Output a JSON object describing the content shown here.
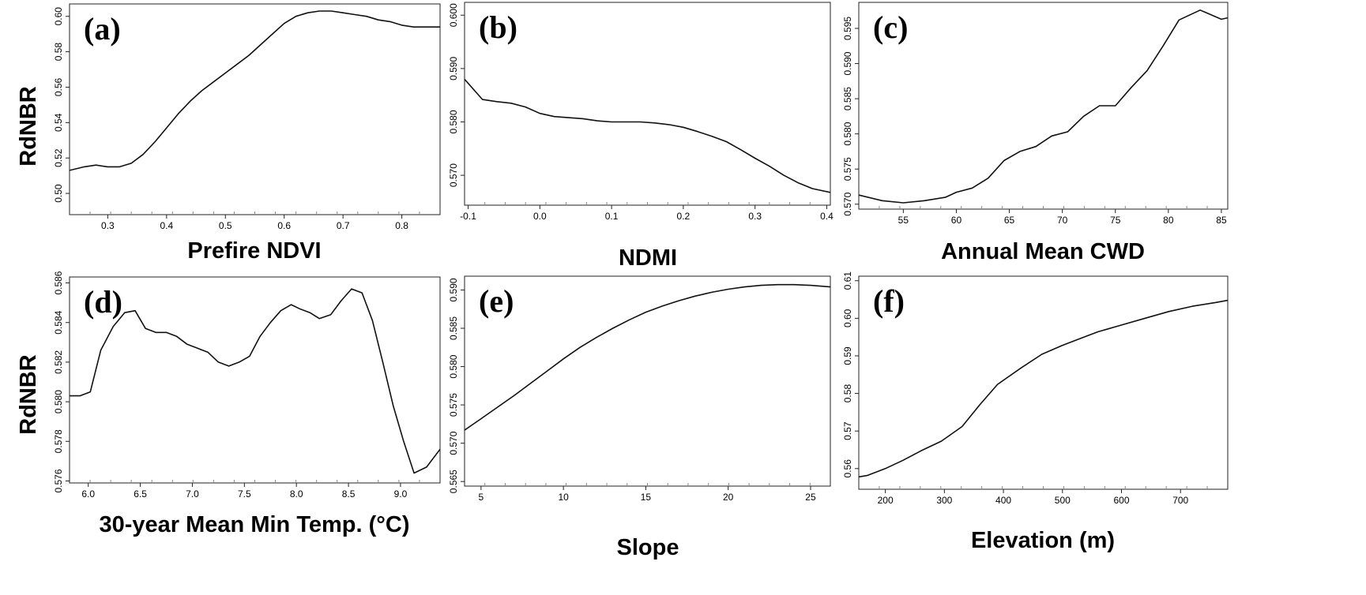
{
  "figure": {
    "shared_ylabel": "RdNBR"
  },
  "chart_data": [
    {
      "type": "line",
      "panel_label": "(a)",
      "title": "",
      "xlabel": "Prefire NDVI",
      "ylabel": "RdNBR",
      "xlim": [
        0.235,
        0.865
      ],
      "ylim": [
        0.488,
        0.607
      ],
      "xticks": [
        0.3,
        0.4,
        0.5,
        0.6,
        0.7,
        0.8
      ],
      "xtick_labels": [
        "0.3",
        "0.4",
        "0.5",
        "0.6",
        "0.7",
        "0.8"
      ],
      "yticks": [
        0.5,
        0.52,
        0.54,
        0.56,
        0.58,
        0.6
      ],
      "ytick_labels": [
        "0.50",
        "0.52",
        "0.54",
        "0.56",
        "0.58",
        "0.60"
      ],
      "x": [
        0.235,
        0.26,
        0.28,
        0.3,
        0.32,
        0.34,
        0.36,
        0.38,
        0.4,
        0.42,
        0.44,
        0.46,
        0.48,
        0.5,
        0.52,
        0.54,
        0.56,
        0.58,
        0.6,
        0.62,
        0.64,
        0.66,
        0.68,
        0.7,
        0.72,
        0.74,
        0.76,
        0.78,
        0.8,
        0.82,
        0.84,
        0.865
      ],
      "y": [
        0.513,
        0.515,
        0.516,
        0.515,
        0.515,
        0.517,
        0.522,
        0.529,
        0.537,
        0.545,
        0.552,
        0.558,
        0.563,
        0.568,
        0.573,
        0.578,
        0.584,
        0.59,
        0.596,
        0.6,
        0.602,
        0.603,
        0.603,
        0.602,
        0.601,
        0.6,
        0.598,
        0.597,
        0.595,
        0.594,
        0.594,
        0.594
      ]
    },
    {
      "type": "line",
      "panel_label": "(b)",
      "title": "",
      "xlabel": "NDMI",
      "ylabel": "RdNBR",
      "xlim": [
        -0.105,
        0.405
      ],
      "ylim": [
        0.5644,
        0.6024
      ],
      "xticks": [
        -0.1,
        0.0,
        0.1,
        0.2,
        0.3,
        0.4
      ],
      "xtick_labels": [
        "-0.1",
        "0.0",
        "0.1",
        "0.2",
        "0.3",
        "0.4"
      ],
      "yticks": [
        0.57,
        0.58,
        0.59,
        0.6
      ],
      "ytick_labels": [
        "0.570",
        "0.580",
        "0.590",
        "0.600"
      ],
      "x": [
        -0.105,
        -0.08,
        -0.06,
        -0.04,
        -0.02,
        0.0,
        0.02,
        0.04,
        0.06,
        0.08,
        0.1,
        0.12,
        0.14,
        0.16,
        0.18,
        0.2,
        0.22,
        0.24,
        0.26,
        0.28,
        0.3,
        0.32,
        0.34,
        0.36,
        0.38,
        0.405
      ],
      "y": [
        0.588,
        0.5842,
        0.5838,
        0.5835,
        0.5828,
        0.5816,
        0.581,
        0.5808,
        0.5806,
        0.5802,
        0.58,
        0.58,
        0.58,
        0.5798,
        0.5795,
        0.579,
        0.5782,
        0.5773,
        0.5763,
        0.5748,
        0.5732,
        0.5717,
        0.57,
        0.5686,
        0.5675,
        0.5668
      ]
    },
    {
      "type": "line",
      "panel_label": "(c)",
      "title": "",
      "xlabel": "Annual Mean CWD",
      "ylabel": "RdNBR",
      "xlim": [
        50.8,
        85.6
      ],
      "ylim": [
        0.5693,
        0.5987
      ],
      "xticks": [
        55,
        60,
        65,
        70,
        75,
        80,
        85
      ],
      "xtick_labels": [
        "55",
        "60",
        "65",
        "70",
        "75",
        "80",
        "85"
      ],
      "yticks": [
        0.57,
        0.575,
        0.58,
        0.585,
        0.59,
        0.595
      ],
      "ytick_labels": [
        "0.570",
        "0.575",
        "0.580",
        "0.585",
        "0.590",
        "0.595"
      ],
      "x": [
        50.8,
        53,
        55,
        57,
        59,
        60,
        61.5,
        63,
        64.5,
        66,
        67.5,
        69,
        70.5,
        72,
        73.5,
        75,
        76.5,
        78,
        79.5,
        81,
        83,
        85,
        85.6
      ],
      "y": [
        0.5713,
        0.5705,
        0.5702,
        0.5705,
        0.571,
        0.5717,
        0.5723,
        0.5737,
        0.5762,
        0.5775,
        0.5782,
        0.5797,
        0.5803,
        0.5825,
        0.584,
        0.584,
        0.5866,
        0.589,
        0.5925,
        0.5962,
        0.5976,
        0.5963,
        0.5965
      ]
    },
    {
      "type": "line",
      "panel_label": "(d)",
      "title": "",
      "xlabel": "30-year Mean Min Temp. (°C)",
      "ylabel": "RdNBR",
      "xlim": [
        5.82,
        9.38
      ],
      "ylim": [
        0.5759,
        0.5863
      ],
      "xticks": [
        6.0,
        6.5,
        7.0,
        7.5,
        8.0,
        8.5,
        9.0
      ],
      "xtick_labels": [
        "6.0",
        "6.5",
        "7.0",
        "7.5",
        "8.0",
        "8.5",
        "9.0"
      ],
      "yticks": [
        0.576,
        0.578,
        0.58,
        0.582,
        0.584,
        0.586
      ],
      "ytick_labels": [
        "0.576",
        "0.578",
        "0.580",
        "0.582",
        "0.584",
        "0.586"
      ],
      "x": [
        5.82,
        5.92,
        6.02,
        6.12,
        6.24,
        6.35,
        6.45,
        6.55,
        6.65,
        6.75,
        6.85,
        6.95,
        7.05,
        7.15,
        7.25,
        7.35,
        7.45,
        7.55,
        7.65,
        7.75,
        7.85,
        7.95,
        8.03,
        8.13,
        8.22,
        8.33,
        8.43,
        8.53,
        8.63,
        8.73,
        8.83,
        8.93,
        9.03,
        9.13,
        9.25,
        9.38
      ],
      "y": [
        0.5803,
        0.5803,
        0.5805,
        0.5826,
        0.5838,
        0.5845,
        0.5846,
        0.5837,
        0.5835,
        0.5835,
        0.5833,
        0.5829,
        0.5827,
        0.5825,
        0.582,
        0.5818,
        0.582,
        0.5823,
        0.5833,
        0.584,
        0.5846,
        0.5849,
        0.5847,
        0.5845,
        0.5842,
        0.5844,
        0.5851,
        0.5857,
        0.5855,
        0.5841,
        0.582,
        0.5798,
        0.578,
        0.5764,
        0.5767,
        0.5776
      ]
    },
    {
      "type": "line",
      "panel_label": "(e)",
      "title": "",
      "xlabel": "Slope",
      "ylabel": "RdNBR",
      "xlim": [
        4.0,
        26.2
      ],
      "ylim": [
        0.5644,
        0.5918
      ],
      "xticks": [
        5,
        10,
        15,
        20,
        25
      ],
      "xtick_labels": [
        "5",
        "10",
        "15",
        "20",
        "25"
      ],
      "yticks": [
        0.565,
        0.57,
        0.575,
        0.58,
        0.585,
        0.59
      ],
      "ytick_labels": [
        "0.565",
        "0.570",
        "0.575",
        "0.580",
        "0.585",
        "0.590"
      ],
      "x": [
        4.0,
        5,
        6,
        7,
        8,
        9,
        10,
        11,
        12,
        13,
        14,
        15,
        16,
        17,
        18,
        19,
        20,
        21,
        22,
        23,
        24,
        25,
        26.2
      ],
      "y": [
        0.5717,
        0.5732,
        0.5747,
        0.5762,
        0.5778,
        0.5794,
        0.581,
        0.5825,
        0.5838,
        0.585,
        0.5861,
        0.5871,
        0.5879,
        0.5886,
        0.5892,
        0.5897,
        0.5901,
        0.5904,
        0.5906,
        0.5907,
        0.5907,
        0.5906,
        0.5904
      ]
    },
    {
      "type": "line",
      "panel_label": "(f)",
      "title": "",
      "xlabel": "Elevation (m)",
      "ylabel": "RdNBR",
      "xlim": [
        155,
        780
      ],
      "ylim": [
        0.5545,
        0.6112
      ],
      "xticks": [
        200,
        300,
        400,
        500,
        600,
        700
      ],
      "xtick_labels": [
        "200",
        "300",
        "400",
        "500",
        "600",
        "700"
      ],
      "yticks": [
        0.56,
        0.57,
        0.58,
        0.59,
        0.6,
        0.61
      ],
      "ytick_labels": [
        "0.56",
        "0.57",
        "0.58",
        "0.59",
        "0.60",
        "0.61"
      ],
      "x": [
        155,
        170,
        200,
        230,
        260,
        295,
        330,
        360,
        390,
        430,
        465,
        500,
        530,
        560,
        600,
        640,
        680,
        720,
        760,
        780
      ],
      "y": [
        0.5578,
        0.5582,
        0.56,
        0.5622,
        0.5647,
        0.5673,
        0.5712,
        0.577,
        0.5824,
        0.5868,
        0.5904,
        0.5928,
        0.5946,
        0.5964,
        0.5982,
        0.6,
        0.6018,
        0.6032,
        0.6042,
        0.6048
      ]
    }
  ]
}
